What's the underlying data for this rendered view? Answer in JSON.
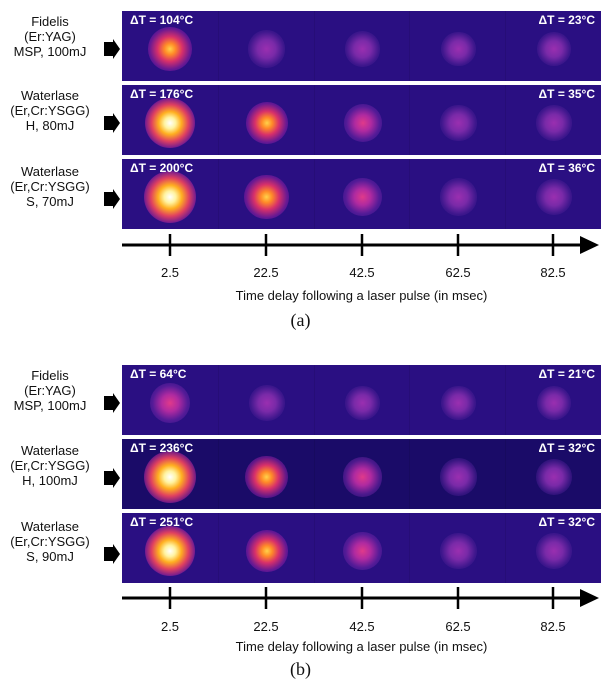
{
  "panel_a": {
    "caption": "(a)",
    "rows": [
      {
        "label_lines": [
          "Fidelis",
          "(Er:YAG)",
          "MSP, 100mJ"
        ],
        "dt_first": "ΔT = 104°C",
        "dt_last": "ΔT = 23°C",
        "intensity": [
          0.62,
          0.32,
          0.26,
          0.22,
          0.18
        ]
      },
      {
        "label_lines": [
          "Waterlase",
          "(Er,Cr:YSGG)",
          "H, 80mJ"
        ],
        "dt_first": "ΔT = 176°C",
        "dt_last": "ΔT = 35°C",
        "intensity": [
          0.92,
          0.55,
          0.36,
          0.3,
          0.26
        ]
      },
      {
        "label_lines": [
          "Waterlase",
          "(Er,Cr:YSGG)",
          "S, 70mJ"
        ],
        "dt_first": "ΔT = 200°C",
        "dt_last": "ΔT = 36°C",
        "intensity": [
          1.0,
          0.68,
          0.4,
          0.32,
          0.27
        ]
      }
    ],
    "x_ticks": [
      "2.5",
      "22.5",
      "42.5",
      "62.5",
      "82.5"
    ],
    "x_label": "Time delay following a laser pulse (in msec)"
  },
  "panel_b": {
    "caption": "(b)",
    "rows": [
      {
        "label_lines": [
          "Fidelis",
          "(Er:YAG)",
          "MSP, 100mJ"
        ],
        "dt_first": "ΔT = 64°C",
        "dt_last": "ΔT = 21°C",
        "intensity": [
          0.45,
          0.26,
          0.22,
          0.2,
          0.18
        ]
      },
      {
        "label_lines": [
          "Waterlase",
          "(Er,Cr:YSGG)",
          "H, 100mJ"
        ],
        "dt_first": "ΔT = 236°C",
        "dt_last": "ΔT = 32°C",
        "intensity": [
          1.0,
          0.58,
          0.42,
          0.32,
          0.28
        ]
      },
      {
        "label_lines": [
          "Waterlase",
          "(Er,Cr:YSGG)",
          "S, 90mJ"
        ],
        "dt_first": "ΔT = 251°C",
        "dt_last": "ΔT = 32°C",
        "intensity": [
          0.95,
          0.52,
          0.38,
          0.3,
          0.26
        ]
      }
    ],
    "x_ticks": [
      "2.5",
      "22.5",
      "42.5",
      "62.5",
      "82.5"
    ],
    "x_label": "Time delay following a laser pulse (in msec)"
  }
}
